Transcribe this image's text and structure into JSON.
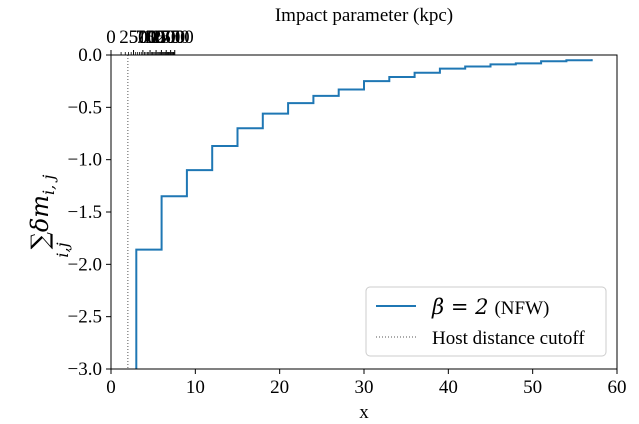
{
  "chart_data": {
    "type": "line",
    "title": "",
    "xlabel": "x",
    "ylabel_parts": {
      "sum": "∑",
      "main": "δm",
      "sub": "i, j",
      "below": "i,j"
    },
    "xlim": [
      0,
      60
    ],
    "ylim": [
      -3.0,
      0.0
    ],
    "xticks": [
      0,
      10,
      20,
      30,
      40,
      50,
      60
    ],
    "yticks": [
      0.0,
      -0.5,
      -1.0,
      -1.5,
      -2.0,
      -2.5,
      -3.0
    ],
    "ytick_labels": [
      "0.0",
      "−0.5",
      "−1.0",
      "−1.5",
      "−2.0",
      "−2.5",
      "−3.0"
    ],
    "secondary_x": {
      "label": "Impact parameter (kpc)",
      "range_kpc": [
        0,
        2000
      ],
      "ticks": [
        {
          "value": 0,
          "label": "0"
        },
        {
          "value": 250,
          "label": "250"
        },
        {
          "value": 500,
          "label": "500"
        },
        {
          "value": 750,
          "label": "750"
        },
        {
          "value": 1000,
          "label": "1000"
        },
        {
          "value": 1250,
          "label": "1250"
        },
        {
          "value": 1500,
          "label": "1500"
        },
        {
          "value": 1750,
          "label": "1750"
        },
        {
          "value": 2000,
          "label": "2000"
        }
      ]
    },
    "series": [
      {
        "name_math": "β = 2",
        "name_text": "(NFW)",
        "color": "#1f77b4",
        "style": "step-post",
        "x": [
          3,
          6,
          9,
          12,
          15,
          18,
          21,
          24,
          27,
          30,
          33,
          36,
          39,
          42,
          45,
          48,
          51,
          54,
          57
        ],
        "y": [
          -1.86,
          -1.35,
          -1.1,
          -0.87,
          -0.7,
          -0.56,
          -0.46,
          -0.39,
          -0.33,
          -0.25,
          -0.21,
          -0.17,
          -0.13,
          -0.11,
          -0.09,
          -0.08,
          -0.06,
          -0.05,
          -0.04
        ],
        "y_start": -3.0
      }
    ],
    "reference_line": {
      "name": "Host distance cutoff",
      "x": 2.0,
      "color": "#555555",
      "style": "dotted"
    },
    "legend_position": "lower-right",
    "grid": false
  }
}
